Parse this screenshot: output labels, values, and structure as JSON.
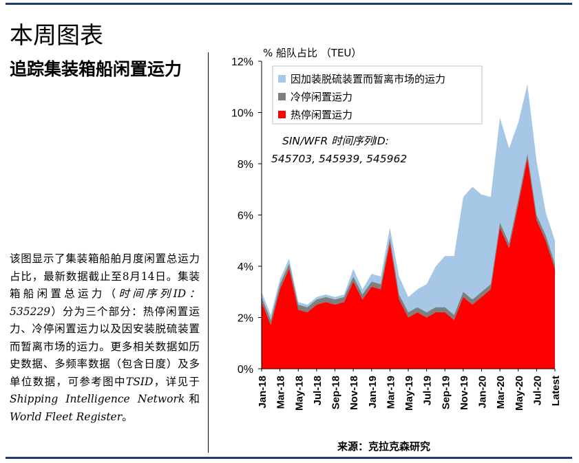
{
  "page": {
    "title": "本周图表",
    "subtitle": "追踪集装箱船闲置运力",
    "body_parts": [
      {
        "text": "该图显示了集装箱船舶月度闲置总运力占比，最新数据截止至8月14日。集装箱船闲置总运力（",
        "italic": false
      },
      {
        "text": "时间序列ID：535229",
        "italic": true
      },
      {
        "text": "）分为三个部分：热停闲置运力、冷停闲置运力以及因安装脱硫装置而暂离市场的运力。更多相关数据如历史数据、多频率数据（包含日度）及多单位数据，可参考图中",
        "italic": false
      },
      {
        "text": "TSID",
        "italic": true
      },
      {
        "text": "，详见于",
        "italic": false
      },
      {
        "text": "Shipping Intelligence Network",
        "italic": true
      },
      {
        "text": "和",
        "italic": false
      },
      {
        "text": "World Fleet Register",
        "italic": true
      },
      {
        "text": "。",
        "italic": false
      }
    ],
    "source": "来源：克拉克森研究"
  },
  "colors": {
    "rule": "#1f3a6e",
    "hot": "#ff0000",
    "cold": "#7f7f7f",
    "scrubber": "#a6c8e6"
  },
  "chart_data": {
    "type": "area",
    "stacked": true,
    "ylabel": "% 船队占比 （TEU）",
    "ylim": [
      0,
      12
    ],
    "yticks": [
      "0%",
      "2%",
      "4%",
      "6%",
      "8%",
      "10%",
      "12%"
    ],
    "annotation_line1": "SIN/WFR 时间序列ID:",
    "annotation_line2": "545703, 545939, 545962",
    "legend_position": "top",
    "categories": [
      "Jan-18",
      "Feb-18",
      "Mar-18",
      "Apr-18",
      "May-18",
      "Jun-18",
      "Jul-18",
      "Aug-18",
      "Sep-18",
      "Oct-18",
      "Nov-18",
      "Dec-18",
      "Jan-19",
      "Feb-19",
      "Mar-19",
      "Apr-19",
      "May-19",
      "Jun-19",
      "Jul-19",
      "Aug-19",
      "Sep-19",
      "Oct-19",
      "Nov-19",
      "Dec-19",
      "Jan-20",
      "Feb-20",
      "Mar-20",
      "Apr-20",
      "May-20",
      "Jun-20",
      "Jul-20",
      "Aug-20",
      "Latest"
    ],
    "tick_labels": [
      "Jan-18",
      "Mar-18",
      "May-18",
      "Jul-18",
      "Sep-18",
      "Nov-18",
      "Jan-19",
      "Mar-19",
      "May-19",
      "Jul-19",
      "Sep-19",
      "Nov-19",
      "Jan-20",
      "Mar-20",
      "May-20",
      "Jul-20",
      "Latest"
    ],
    "series": [
      {
        "name": "热停闲置运力",
        "values": [
          2.6,
          1.7,
          3.1,
          3.9,
          2.3,
          2.2,
          2.5,
          2.6,
          2.5,
          2.6,
          3.4,
          2.7,
          3.2,
          3.1,
          4.9,
          2.7,
          2.0,
          2.2,
          2.0,
          2.2,
          2.2,
          1.9,
          2.8,
          2.5,
          2.8,
          3.1,
          5.5,
          4.7,
          6.4,
          8.2,
          5.8,
          5.0,
          3.9
        ]
      },
      {
        "name": "冷停闲置运力",
        "values": [
          0.2,
          0.2,
          0.2,
          0.2,
          0.2,
          0.2,
          0.2,
          0.2,
          0.2,
          0.2,
          0.2,
          0.2,
          0.2,
          0.2,
          0.2,
          0.2,
          0.2,
          0.2,
          0.2,
          0.2,
          0.2,
          0.2,
          0.2,
          0.2,
          0.2,
          0.2,
          0.2,
          0.2,
          0.2,
          0.2,
          0.2,
          0.2,
          0.2
        ]
      },
      {
        "name": "因加装脱硫装置而暂离市场的运力",
        "values": [
          0.2,
          0.2,
          0.2,
          0.2,
          0.1,
          0.1,
          0.1,
          0.1,
          0.1,
          0.1,
          0.3,
          0.2,
          0.3,
          0.3,
          0.4,
          0.7,
          0.6,
          0.7,
          1.1,
          1.6,
          2.0,
          2.3,
          3.7,
          4.4,
          3.8,
          3.4,
          4.1,
          3.7,
          3.0,
          2.7,
          2.1,
          0.9,
          0.9
        ]
      }
    ]
  }
}
